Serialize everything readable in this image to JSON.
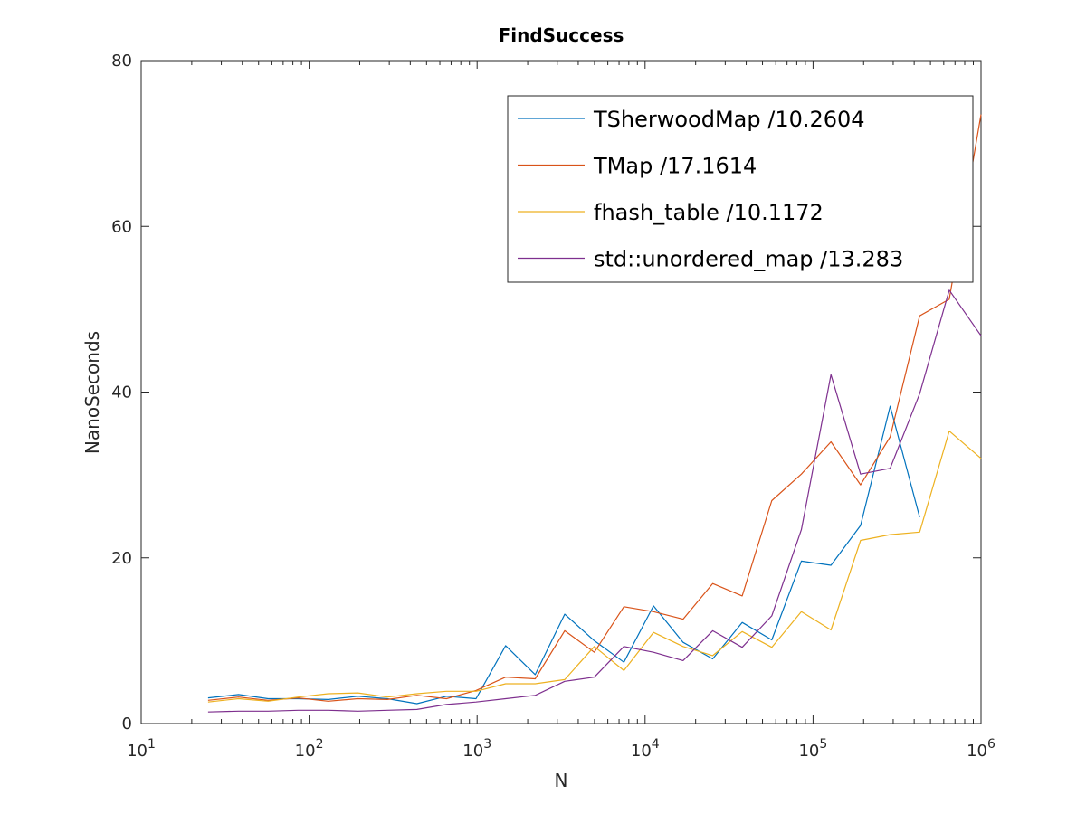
{
  "chart_data": {
    "type": "line",
    "title": "FindSuccess",
    "xlabel": "N",
    "ylabel": "NanoSeconds",
    "xscale": "log",
    "xlim": [
      10,
      1000000
    ],
    "ylim": [
      0,
      80
    ],
    "x_ticks": [
      {
        "value": 10,
        "base": "10",
        "exp": "1"
      },
      {
        "value": 100,
        "base": "10",
        "exp": "2"
      },
      {
        "value": 1000,
        "base": "10",
        "exp": "3"
      },
      {
        "value": 10000,
        "base": "10",
        "exp": "4"
      },
      {
        "value": 100000,
        "base": "10",
        "exp": "5"
      },
      {
        "value": 1000000,
        "base": "10",
        "exp": "6"
      }
    ],
    "y_ticks": [
      {
        "value": 0,
        "label": "0"
      },
      {
        "value": 20,
        "label": "20"
      },
      {
        "value": 40,
        "label": "40"
      },
      {
        "value": 60,
        "label": "60"
      },
      {
        "value": 80,
        "label": "80"
      }
    ],
    "grid": false,
    "box": true,
    "legend_position": "top-right",
    "series": [
      {
        "name": "TSherwoodMap /10.2604",
        "color": "#0072BD",
        "x": [
          25,
          38,
          57,
          86,
          130,
          195,
          292,
          438,
          657,
          985,
          1478,
          2217,
          3325,
          4988,
          7482,
          11223,
          16834,
          25251,
          37877,
          56815,
          85223,
          127834,
          191751,
          287627,
          431440
        ],
        "y": [
          3.1,
          3.5,
          3.0,
          3.0,
          2.9,
          3.3,
          3.0,
          2.4,
          3.3,
          3.0,
          9.4,
          5.9,
          13.2,
          10.0,
          7.4,
          14.2,
          9.8,
          7.8,
          12.2,
          10.1,
          19.6,
          19.1,
          23.9,
          38.3,
          24.9
        ]
      },
      {
        "name": "TMap /17.1614",
        "color": "#D95319",
        "x": [
          25,
          38,
          57,
          86,
          130,
          195,
          292,
          438,
          657,
          985,
          1478,
          2217,
          3325,
          4988,
          7482,
          11223,
          16834,
          25251,
          37877,
          56815,
          85223,
          127834,
          191751,
          287627,
          431440,
          647160,
          1000000
        ],
        "y": [
          2.8,
          3.2,
          2.8,
          3.1,
          2.7,
          3.0,
          2.9,
          3.4,
          3.0,
          4.0,
          5.6,
          5.4,
          11.2,
          8.6,
          14.1,
          13.5,
          12.6,
          16.9,
          15.4,
          26.9,
          30.1,
          34.0,
          28.8,
          34.6,
          49.2,
          51.2,
          73.5
        ]
      },
      {
        "name": "fhash_table /10.1172",
        "color": "#EDB120",
        "x": [
          25,
          38,
          57,
          86,
          130,
          195,
          292,
          438,
          657,
          985,
          1478,
          2217,
          3325,
          4988,
          7482,
          11223,
          16834,
          25251,
          37877,
          56815,
          85223,
          127834,
          191751,
          287627,
          431440,
          647160,
          1000000
        ],
        "y": [
          2.6,
          3.0,
          2.7,
          3.2,
          3.6,
          3.7,
          3.2,
          3.6,
          3.9,
          3.9,
          4.8,
          4.8,
          5.3,
          9.3,
          6.4,
          11.0,
          9.3,
          8.2,
          11.1,
          9.2,
          13.5,
          11.3,
          22.1,
          22.8,
          23.1,
          35.3,
          32.0
        ]
      },
      {
        "name": "std::unordered_map /13.283",
        "color": "#7E2F8E",
        "x": [
          25,
          38,
          57,
          86,
          130,
          195,
          292,
          438,
          657,
          985,
          1478,
          2217,
          3325,
          4988,
          7482,
          11223,
          16834,
          25251,
          37877,
          56815,
          85223,
          127834,
          191751,
          287627,
          431440,
          647160,
          1000000
        ],
        "y": [
          1.4,
          1.5,
          1.5,
          1.6,
          1.6,
          1.5,
          1.6,
          1.7,
          2.3,
          2.6,
          3.0,
          3.4,
          5.1,
          5.6,
          9.3,
          8.6,
          7.6,
          11.2,
          9.2,
          13.0,
          23.4,
          42.1,
          30.1,
          30.8,
          39.8,
          52.3,
          46.8
        ]
      }
    ]
  }
}
